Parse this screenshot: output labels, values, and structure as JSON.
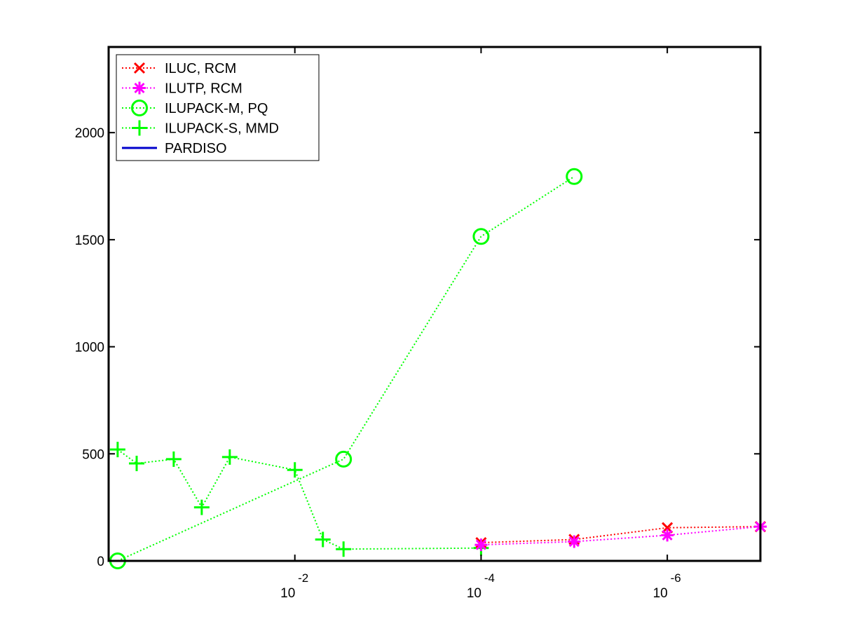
{
  "chart_data": {
    "type": "line",
    "xscale": "log-reversed",
    "xlim": [
      1,
      1e-07
    ],
    "ylim": [
      0,
      2400
    ],
    "grid": false,
    "legend_position": "top-left",
    "x_ticks": [
      {
        "value": 0.01,
        "base": "10",
        "exponent": "-2"
      },
      {
        "value": 0.0001,
        "base": "10",
        "exponent": "-4"
      },
      {
        "value": 1e-06,
        "base": "10",
        "exponent": "-6"
      }
    ],
    "y_ticks": [
      {
        "value": 0,
        "label": "0"
      },
      {
        "value": 500,
        "label": "500"
      },
      {
        "value": 1000,
        "label": "1000"
      },
      {
        "value": 1500,
        "label": "1500"
      },
      {
        "value": 2000,
        "label": "2000"
      }
    ],
    "series": [
      {
        "name": "ILUC, RCM",
        "color": "#ff0000",
        "marker": "x",
        "line": "dotted",
        "x": [
          0.0001,
          1e-05,
          1e-06,
          1e-07
        ],
        "y": [
          85,
          100,
          155,
          160
        ]
      },
      {
        "name": "ILUTP, RCM",
        "color": "#ff00ff",
        "marker": "asterisk",
        "line": "dotted",
        "x": [
          0.0001,
          1e-05,
          1e-06,
          1e-07
        ],
        "y": [
          75,
          90,
          120,
          160
        ]
      },
      {
        "name": "ILUPACK-M, PQ",
        "color": "#00ff00",
        "marker": "circle",
        "line": "dotted",
        "x": [
          0.8,
          0.003,
          0.0001,
          1e-05
        ],
        "y": [
          0,
          475,
          1515,
          1795
        ]
      },
      {
        "name": "ILUPACK-S, MMD",
        "color": "#00ff00",
        "marker": "plus",
        "line": "dotted",
        "x": [
          0.8,
          0.5,
          0.2,
          0.1,
          0.05,
          0.01,
          0.005,
          0.003,
          0.0001
        ],
        "y": [
          520,
          455,
          475,
          250,
          485,
          425,
          100,
          55,
          60
        ]
      },
      {
        "name": "PARDISO",
        "color": "#0000cc",
        "marker": "none",
        "line": "solid",
        "x": [
          0.8,
          1e-07
        ],
        "y": [
          0,
          0
        ]
      }
    ]
  }
}
